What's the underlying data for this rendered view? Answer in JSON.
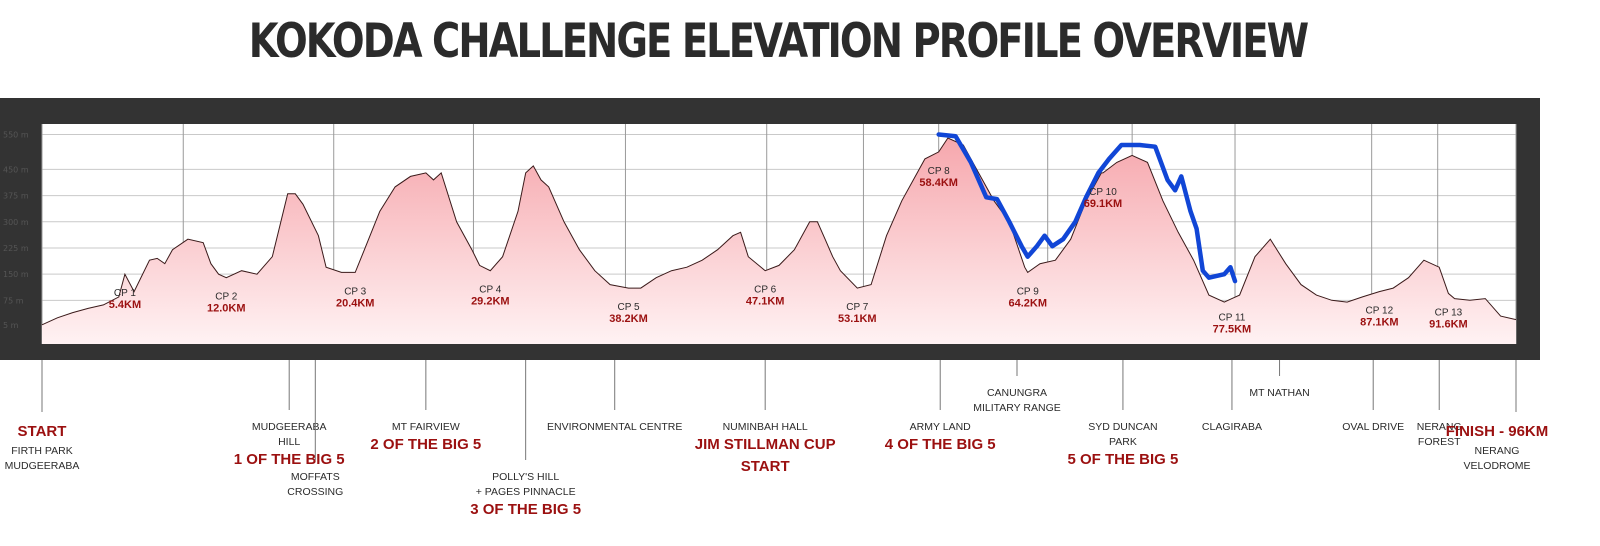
{
  "title": "KOKODA CHALLENGE ELEVATION PROFILE OVERVIEW",
  "colors": {
    "frame": "#333333",
    "profile_line": "#3a1a1a",
    "fill_top": "#f6a7ad",
    "fill_bottom": "#fff2f3",
    "highlight": "#1146d6",
    "accent_text": "#9b1010",
    "text": "#2b2b2b",
    "grid": "#c9c9c9",
    "leader": "#777777"
  },
  "chart_data": {
    "type": "area",
    "title": "KOKODA CHALLENGE ELEVATION PROFILE OVERVIEW",
    "x_unit": "km",
    "y_unit": "m",
    "xlim": [
      0,
      96
    ],
    "ylim": [
      -50,
      580
    ],
    "y_ticks": [
      {
        "value": 5,
        "label": "5 m"
      },
      {
        "value": 75,
        "label": "75 m"
      },
      {
        "value": 150,
        "label": "150 m"
      },
      {
        "value": 225,
        "label": "225 m"
      },
      {
        "value": 300,
        "label": "300 m"
      },
      {
        "value": 375,
        "label": "375 m"
      },
      {
        "value": 450,
        "label": "450 m"
      },
      {
        "value": 550,
        "label": "550 m"
      }
    ],
    "profile": [
      [
        0,
        5
      ],
      [
        1,
        25
      ],
      [
        2,
        40
      ],
      [
        3,
        52
      ],
      [
        4,
        62
      ],
      [
        5,
        85
      ],
      [
        5.4,
        150
      ],
      [
        6,
        100
      ],
      [
        7,
        190
      ],
      [
        7.5,
        195
      ],
      [
        8,
        180
      ],
      [
        8.5,
        220
      ],
      [
        9.5,
        250
      ],
      [
        10.5,
        240
      ],
      [
        11,
        180
      ],
      [
        11.5,
        150
      ],
      [
        12,
        140
      ],
      [
        13,
        160
      ],
      [
        14,
        150
      ],
      [
        15,
        200
      ],
      [
        16,
        380
      ],
      [
        16.5,
        380
      ],
      [
        17,
        350
      ],
      [
        18,
        260
      ],
      [
        18.5,
        170
      ],
      [
        19.5,
        155
      ],
      [
        20.4,
        155
      ],
      [
        21,
        220
      ],
      [
        22,
        330
      ],
      [
        23,
        400
      ],
      [
        24,
        430
      ],
      [
        25,
        440
      ],
      [
        25.5,
        420
      ],
      [
        26,
        440
      ],
      [
        27,
        300
      ],
      [
        28,
        220
      ],
      [
        28.5,
        175
      ],
      [
        29.2,
        160
      ],
      [
        30,
        200
      ],
      [
        31,
        330
      ],
      [
        31.5,
        440
      ],
      [
        32,
        460
      ],
      [
        32.5,
        420
      ],
      [
        33,
        400
      ],
      [
        34,
        300
      ],
      [
        35,
        220
      ],
      [
        36,
        160
      ],
      [
        37,
        120
      ],
      [
        38.2,
        110
      ],
      [
        39,
        110
      ],
      [
        40,
        140
      ],
      [
        41,
        160
      ],
      [
        42,
        170
      ],
      [
        43,
        190
      ],
      [
        44,
        220
      ],
      [
        45,
        260
      ],
      [
        45.5,
        270
      ],
      [
        46,
        200
      ],
      [
        47.1,
        160
      ],
      [
        48,
        175
      ],
      [
        49,
        220
      ],
      [
        50,
        300
      ],
      [
        50.5,
        300
      ],
      [
        51,
        250
      ],
      [
        51.5,
        200
      ],
      [
        52,
        160
      ],
      [
        53.1,
        110
      ],
      [
        54,
        120
      ],
      [
        55,
        260
      ],
      [
        56,
        360
      ],
      [
        57,
        440
      ],
      [
        57.5,
        480
      ],
      [
        58.4,
        500
      ],
      [
        59,
        540
      ],
      [
        60,
        520
      ],
      [
        61,
        440
      ],
      [
        62,
        360
      ],
      [
        63,
        300
      ],
      [
        64,
        170
      ],
      [
        64.2,
        155
      ],
      [
        65,
        180
      ],
      [
        66,
        190
      ],
      [
        67,
        250
      ],
      [
        68,
        360
      ],
      [
        69,
        440
      ],
      [
        69.1,
        440
      ],
      [
        70,
        470
      ],
      [
        71,
        490
      ],
      [
        72,
        470
      ],
      [
        73,
        360
      ],
      [
        74,
        270
      ],
      [
        75,
        190
      ],
      [
        76,
        90
      ],
      [
        77,
        70
      ],
      [
        77.5,
        80
      ],
      [
        78,
        90
      ],
      [
        79,
        200
      ],
      [
        80,
        250
      ],
      [
        81,
        180
      ],
      [
        82,
        120
      ],
      [
        83,
        90
      ],
      [
        84,
        75
      ],
      [
        85,
        70
      ],
      [
        86,
        85
      ],
      [
        87.1,
        100
      ],
      [
        88,
        110
      ],
      [
        89,
        140
      ],
      [
        90,
        190
      ],
      [
        91,
        170
      ],
      [
        91.6,
        95
      ],
      [
        92,
        80
      ],
      [
        93,
        75
      ],
      [
        94,
        80
      ],
      [
        95,
        30
      ],
      [
        96,
        20
      ]
    ],
    "highlight_profile": [
      [
        58.4,
        550
      ],
      [
        59.5,
        545
      ],
      [
        60.5,
        470
      ],
      [
        61.5,
        370
      ],
      [
        62.2,
        365
      ],
      [
        63,
        300
      ],
      [
        63.8,
        230
      ],
      [
        64.2,
        200
      ],
      [
        64.8,
        230
      ],
      [
        65.3,
        260
      ],
      [
        65.8,
        230
      ],
      [
        66.5,
        250
      ],
      [
        67.3,
        300
      ],
      [
        68,
        370
      ],
      [
        68.8,
        440
      ],
      [
        69.5,
        480
      ],
      [
        70.3,
        520
      ],
      [
        71.5,
        520
      ],
      [
        72.5,
        515
      ],
      [
        73.3,
        420
      ],
      [
        73.8,
        390
      ],
      [
        74.2,
        430
      ],
      [
        74.8,
        330
      ],
      [
        75.2,
        280
      ],
      [
        75.6,
        160
      ],
      [
        76,
        140
      ],
      [
        76.5,
        145
      ],
      [
        77,
        150
      ],
      [
        77.4,
        170
      ],
      [
        77.7,
        130
      ]
    ],
    "checkpoints": [
      {
        "label": "CP 1",
        "km_label": "5.4KM",
        "km": 5.4
      },
      {
        "label": "CP 2",
        "km_label": "12.0KM",
        "km": 12.0
      },
      {
        "label": "CP 3",
        "km_label": "20.4KM",
        "km": 20.4
      },
      {
        "label": "CP 4",
        "km_label": "29.2KM",
        "km": 29.2
      },
      {
        "label": "CP 5",
        "km_label": "38.2KM",
        "km": 38.2
      },
      {
        "label": "CP 6",
        "km_label": "47.1KM",
        "km": 47.1
      },
      {
        "label": "CP 7",
        "km_label": "53.1KM",
        "km": 53.1
      },
      {
        "label": "CP 8",
        "km_label": "58.4KM",
        "km": 58.4
      },
      {
        "label": "CP 9",
        "km_label": "64.2KM",
        "km": 64.2
      },
      {
        "label": "CP 10",
        "km_label": "69.1KM",
        "km": 69.1
      },
      {
        "label": "CP 11",
        "km_label": "77.5KM",
        "km": 77.5
      },
      {
        "label": "CP 12",
        "km_label": "87.1KM",
        "km": 87.1
      },
      {
        "label": "CP 13",
        "km_label": "91.6KM",
        "km": 91.6
      }
    ],
    "landmarks": [
      {
        "name": [
          "FIRTH PARK",
          "MUDGEERABA"
        ],
        "highlight": "START",
        "hl_first": true,
        "km": 0,
        "tier": 2
      },
      {
        "name": [
          "MUDGEERABA",
          "HILL"
        ],
        "highlight": "1 OF THE BIG 5",
        "km": 16.1,
        "tier": 1
      },
      {
        "name": [
          "MOFFATS",
          "CROSSING"
        ],
        "highlight": "",
        "km": 17.8,
        "tier": 3
      },
      {
        "name": [
          "MT FAIRVIEW"
        ],
        "highlight": "2 OF THE BIG 5",
        "km": 25.0,
        "tier": 1
      },
      {
        "name": [
          "POLLY'S HILL",
          "+ PAGES PINNACLE"
        ],
        "highlight": "3 OF THE BIG 5",
        "km": 31.5,
        "tier": 3
      },
      {
        "name": [
          "ENVIRONMENTAL CENTRE"
        ],
        "highlight": "",
        "km": 37.3,
        "tier": 1
      },
      {
        "name": [
          "NUMINBAH HALL"
        ],
        "highlight": [
          "JIM STILLMAN CUP",
          "START"
        ],
        "km": 47.1,
        "tier": 1
      },
      {
        "name": [
          "ARMY LAND"
        ],
        "highlight": "4 OF THE BIG 5",
        "km": 58.5,
        "tier": 1
      },
      {
        "name": [
          "CANUNGRA",
          "MILITARY RANGE"
        ],
        "highlight": "",
        "km": 63.5,
        "tier": 0
      },
      {
        "name": [
          "SYD DUNCAN",
          "PARK"
        ],
        "highlight": "5 OF THE BIG 5",
        "km": 70.4,
        "tier": 1
      },
      {
        "name": [
          "CLAGIRABA"
        ],
        "highlight": "",
        "km": 77.5,
        "tier": 1
      },
      {
        "name": [
          "MT NATHAN"
        ],
        "highlight": "",
        "km": 80.6,
        "tier": 0
      },
      {
        "name": [
          "OVAL DRIVE"
        ],
        "highlight": "",
        "km": 86.7,
        "tier": 1
      },
      {
        "name": [
          "NERANG",
          "FOREST"
        ],
        "highlight": "",
        "km": 91.0,
        "tier": 1
      },
      {
        "name": [
          "NERANG",
          "VELODROME"
        ],
        "highlight": "FINISH - 96KM",
        "hl_first": true,
        "km": 96,
        "tier": 2
      }
    ],
    "grid": true,
    "legend": "none"
  }
}
